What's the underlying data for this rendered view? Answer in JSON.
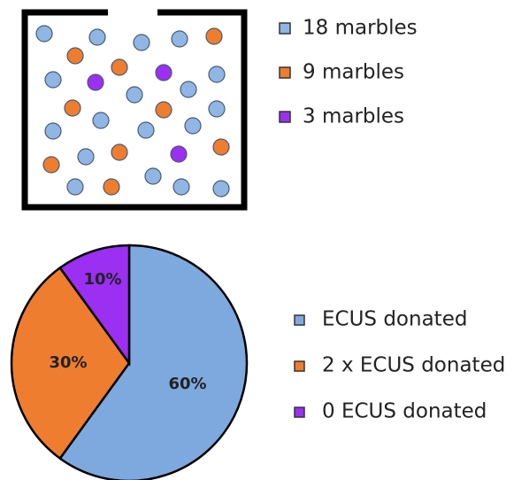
{
  "jar": {
    "legend": [
      "18 marbles",
      "9 marbles",
      "3 marbles"
    ],
    "colors": [
      "#8fb6e4",
      "#ee7d2f",
      "#9b2ff2"
    ]
  },
  "chart_data": {
    "type": "pie",
    "categories": [
      "ECUS donated",
      "2 x ECUS donated",
      "0 ECUS donated"
    ],
    "values": [
      60,
      30,
      10
    ],
    "value_labels": [
      "60%",
      "30%",
      "10%"
    ],
    "colors": [
      "#7ea9de",
      "#ee7d2f",
      "#9b2ff2"
    ]
  }
}
